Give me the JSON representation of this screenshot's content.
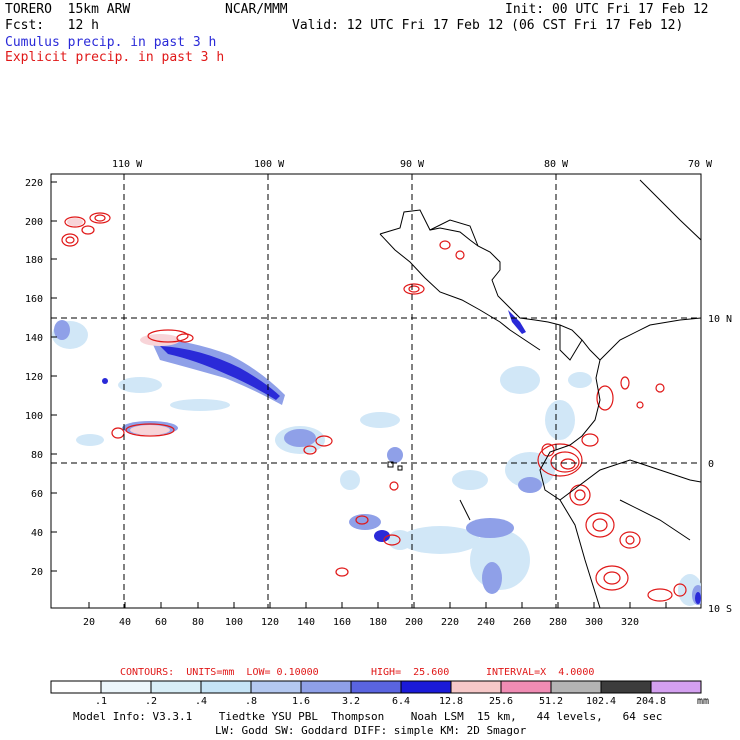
{
  "header": {
    "model": "TORERO  15km ARW",
    "org": "NCAR/MMM",
    "init": "Init: 00 UTC Fri 17 Feb 12",
    "fcst": "Fcst:   12 h",
    "valid": "Valid: 12 UTC Fri 17 Feb 12 (06 CST Fri 17 Feb 12)",
    "cumulus": "Cumulus precip. in past 3 h",
    "explicit": "Explicit precip. in past 3 h"
  },
  "map": {
    "lon_labels": [
      "110 W",
      "100 W",
      "90 W",
      "80 W",
      "70 W"
    ],
    "lat_labels": [
      "10 N",
      "0",
      "10 S"
    ],
    "y_ticks": [
      "220",
      "200",
      "180",
      "160",
      "140",
      "120",
      "100",
      "80",
      "60",
      "40",
      "20"
    ],
    "x_ticks": [
      "20",
      "40",
      "60",
      "80",
      "100",
      "120",
      "140",
      "160",
      "180",
      "200",
      "220",
      "240",
      "260",
      "280",
      "300",
      "320"
    ]
  },
  "contours": {
    "units": "CONTOURS:  UNITS=mm  LOW= 0.10000",
    "high": "HIGH=  25.600",
    "interval": "INTERVAL=X  4.0000"
  },
  "colorbar": {
    "labels": [
      ".1",
      ".2",
      ".4",
      ".8",
      "1.6",
      "3.2",
      "6.4",
      "12.8",
      "25.6",
      "51.2",
      "102.4",
      "204.8"
    ],
    "unit": "mm",
    "colors": [
      "#ffffff",
      "#ecf6fb",
      "#d8eef7",
      "#c6e4f6",
      "#b4c8f0",
      "#8fa0e8",
      "#5a64e0",
      "#1a1ad8",
      "#f6c8c8",
      "#f08cb4",
      "#b4b4b4",
      "#3c3c3c",
      "#d4a0f0"
    ]
  },
  "footer": {
    "line1": "Model Info: V3.3.1    Tiedtke YSU PBL  Thompson    Noah LSM  15 km,   44 levels,   64 sec",
    "line2": "LW: Godd SW: Goddard DIFF: simple KM: 2D Smagor"
  }
}
